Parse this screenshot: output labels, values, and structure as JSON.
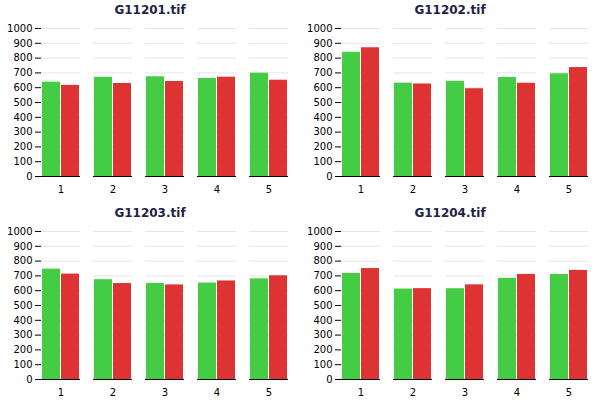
{
  "chart_data": [
    {
      "type": "bar",
      "title": "G11201.tif",
      "categories": [
        "1",
        "2",
        "3",
        "4",
        "5"
      ],
      "series": [
        {
          "color": "#44cc44",
          "values": [
            637.6,
            670.12,
            673.82,
            662.23,
            697.98
          ]
        },
        {
          "color": "#dd3333",
          "values": [
            615.49,
            628.32,
            641.77,
            671.09,
            650.61
          ]
        }
      ],
      "ylim": [
        0,
        1000
      ],
      "yticks": [
        0,
        100,
        200,
        300,
        400,
        500,
        600,
        700,
        800,
        900,
        1000
      ],
      "grid": true
    },
    {
      "type": "bar",
      "title": "G11202.tif",
      "categories": [
        "1",
        "2",
        "3",
        "4",
        "5"
      ],
      "series": [
        {
          "color": "#44cc44",
          "values": [
            839.37,
            630.74,
            643.26,
            668.83,
            694.08
          ]
        },
        {
          "color": "#dd3333",
          "values": [
            869.78,
            625.24,
            593.17,
            630.21,
            736.13
          ]
        }
      ],
      "ylim": [
        0,
        1000
      ],
      "yticks": [
        0,
        100,
        200,
        300,
        400,
        500,
        600,
        700,
        800,
        900,
        1000
      ],
      "grid": true
    },
    {
      "type": "bar",
      "title": "G11203.tif",
      "categories": [
        "1",
        "2",
        "3",
        "4",
        "5"
      ],
      "series": [
        {
          "color": "#44cc44",
          "values": [
            745.69,
            674.34,
            649.14,
            651.74,
            680.09
          ]
        },
        {
          "color": "#dd3333",
          "values": [
            712.24,
            648.41,
            639.11,
            665.81,
            700.78
          ]
        }
      ],
      "ylim": [
        0,
        1000
      ],
      "yticks": [
        0,
        100,
        200,
        300,
        400,
        500,
        600,
        700,
        800,
        900,
        1000
      ],
      "grid": true
    },
    {
      "type": "bar",
      "title": "G11204.tif",
      "categories": [
        "1",
        "2",
        "3",
        "4",
        "5"
      ],
      "series": [
        {
          "color": "#44cc44",
          "values": [
            716.32,
            610.96,
            613.36,
            683.35,
            709.45
          ]
        },
        {
          "color": "#dd3333",
          "values": [
            749.47,
            613.84,
            639.56,
            710.02,
            737.02
          ]
        }
      ],
      "ylim": [
        0,
        1000
      ],
      "yticks": [
        0,
        100,
        200,
        300,
        400,
        500,
        600,
        700,
        800,
        900,
        1000
      ],
      "grid": true
    }
  ]
}
